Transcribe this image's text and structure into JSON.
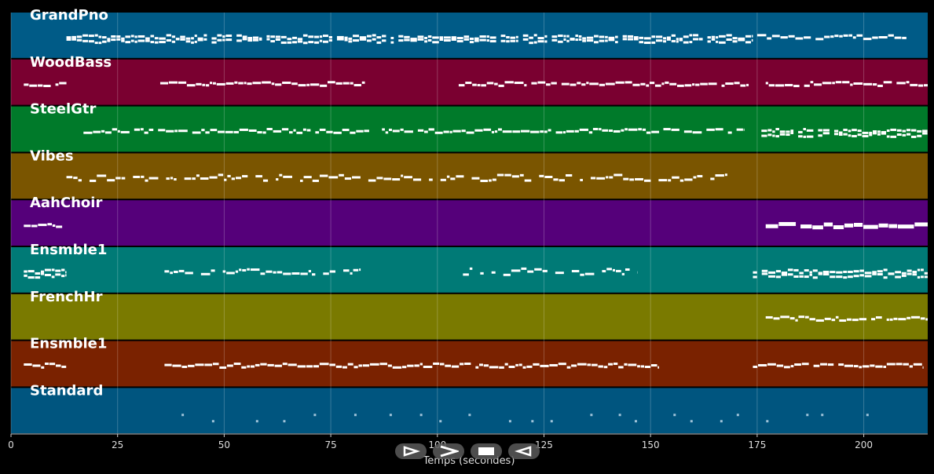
{
  "window": {
    "background": "#000000"
  },
  "timeline": {
    "x_min": 0,
    "x_max": 215,
    "ticks": [
      "0",
      "25",
      "50",
      "75",
      "100",
      "125",
      "150",
      "175",
      "200"
    ],
    "tick_values": [
      0,
      25,
      50,
      75,
      100,
      125,
      150,
      175,
      200
    ],
    "axis_label": "Temps (secondes)"
  },
  "tracks": [
    {
      "name": "GrandPno",
      "color": "#005b87",
      "segments": [
        [
          13,
          174,
          "dense"
        ],
        [
          175,
          210,
          "sparse"
        ]
      ]
    },
    {
      "name": "WoodBass",
      "color": "#7a0030",
      "segments": [
        [
          3,
          13,
          "line"
        ],
        [
          35,
          83,
          "line"
        ],
        [
          105,
          173,
          "line"
        ],
        [
          177,
          215,
          "line"
        ]
      ]
    },
    {
      "name": "SteelGtr",
      "color": "#007a2a",
      "segments": [
        [
          17,
          84,
          "line"
        ],
        [
          87,
          152,
          "line"
        ],
        [
          153,
          172,
          "line"
        ],
        [
          176,
          215,
          "dense"
        ]
      ]
    },
    {
      "name": "Vibes",
      "color": "#7a5500",
      "segments": [
        [
          13,
          168,
          "dots"
        ]
      ]
    },
    {
      "name": "AahChoir",
      "color": "#55007a",
      "segments": [
        [
          3,
          12,
          "line"
        ],
        [
          177,
          215,
          "block"
        ]
      ]
    },
    {
      "name": "Ensmble1",
      "color": "#007a76",
      "segments": [
        [
          3,
          13,
          "dense"
        ],
        [
          36,
          82,
          "dots"
        ],
        [
          106,
          147,
          "dots"
        ],
        [
          174,
          215,
          "dense"
        ]
      ]
    },
    {
      "name": "FrenchHr",
      "color": "#7a7a00",
      "segments": [
        [
          177,
          215,
          "line"
        ]
      ]
    },
    {
      "name": "Ensmble1",
      "color": "#7a2200",
      "segments": [
        [
          3,
          13,
          "line"
        ],
        [
          36,
          152,
          "line"
        ],
        [
          174,
          214,
          "line"
        ]
      ]
    },
    {
      "name": "Standard",
      "color": "#00557f",
      "segments": [
        [
          40,
          205,
          "perc"
        ]
      ]
    }
  ],
  "controls": [
    {
      "name": "rewind-button",
      "icon": "rewind-icon"
    },
    {
      "name": "play-button",
      "icon": "play-icon"
    },
    {
      "name": "stop-button",
      "icon": "stop-icon"
    },
    {
      "name": "forward-button",
      "icon": "forward-icon"
    }
  ]
}
